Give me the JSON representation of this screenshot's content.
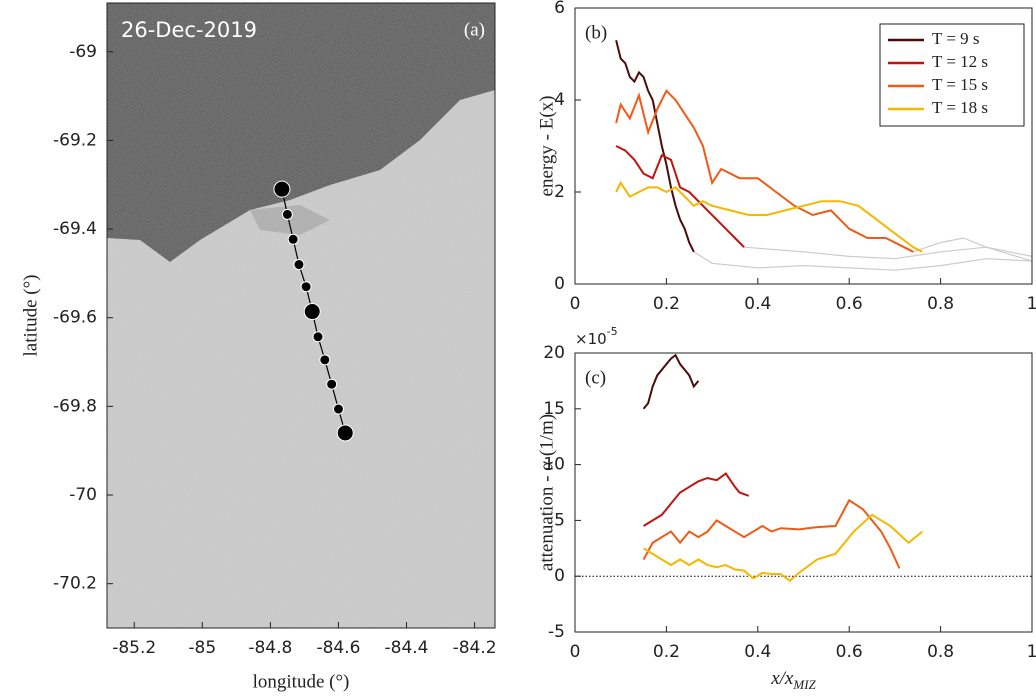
{
  "chart_data": [
    {
      "type": "scatter",
      "title": "26-Dec-2019",
      "panel_label": "(a)",
      "xlabel": "longitude (°)",
      "ylabel": "latitude (°)",
      "xlim": [
        -85.28,
        -84.14
      ],
      "ylim": [
        -70.3,
        -68.89
      ],
      "xticks": [
        -85.2,
        -85,
        -84.8,
        -84.6,
        -84.4,
        -84.2
      ],
      "yticks": [
        -70.2,
        -70,
        -69.8,
        -69.6,
        -69.4,
        -69.2,
        -69
      ],
      "color": "#000000",
      "x": [
        -84.766,
        -84.75,
        -84.733,
        -84.716,
        -84.695,
        -84.677,
        -84.66,
        -84.64,
        -84.62,
        -84.6,
        -84.58
      ],
      "values": [
        -69.31,
        -69.367,
        -69.423,
        -69.48,
        -69.53,
        -69.586,
        -69.643,
        -69.695,
        -69.75,
        -69.806,
        -69.86
      ]
    },
    {
      "type": "line",
      "panel_label": "(b)",
      "ylabel": "energy - E(x)",
      "xlim": [
        0,
        1
      ],
      "ylim": [
        0,
        6
      ],
      "xticks": [
        0,
        0.2,
        0.4,
        0.6,
        0.8,
        1
      ],
      "yticks": [
        0,
        2,
        4,
        6
      ],
      "legend": "upper right",
      "series": [
        {
          "name": null,
          "color": "#cccccc",
          "x": [
            0.26,
            0.3,
            0.4,
            0.5,
            0.6,
            0.7,
            0.8,
            0.9,
            1
          ],
          "values": [
            0.7,
            0.45,
            0.35,
            0.4,
            0.35,
            0.3,
            0.4,
            0.55,
            0.5
          ]
        },
        {
          "name": null,
          "color": "#cccccc",
          "x": [
            0.37,
            0.5,
            0.6,
            0.7,
            0.8,
            0.9,
            1
          ],
          "values": [
            0.8,
            0.7,
            0.6,
            0.55,
            0.7,
            0.8,
            0.5
          ]
        },
        {
          "name": null,
          "color": "#cccccc",
          "x": [
            0.74,
            0.8,
            0.85,
            0.9,
            1
          ],
          "values": [
            0.7,
            0.9,
            1.0,
            0.8,
            0.6
          ]
        },
        {
          "name": "T = 9 s",
          "color": "#4a0c0c",
          "x": [
            0.09,
            0.1,
            0.11,
            0.12,
            0.13,
            0.14,
            0.15,
            0.16,
            0.17,
            0.18,
            0.19,
            0.2,
            0.21,
            0.22,
            0.23,
            0.24,
            0.25,
            0.26
          ],
          "values": [
            5.3,
            4.9,
            4.8,
            4.5,
            4.4,
            4.6,
            4.5,
            4.2,
            4.0,
            3.5,
            3.0,
            2.6,
            2.1,
            1.7,
            1.4,
            1.2,
            0.9,
            0.7
          ]
        },
        {
          "name": "T = 12 s",
          "color": "#c0140f",
          "x": [
            0.09,
            0.11,
            0.13,
            0.15,
            0.17,
            0.19,
            0.21,
            0.23,
            0.25,
            0.27,
            0.29,
            0.31,
            0.33,
            0.35,
            0.37
          ],
          "values": [
            3.0,
            2.9,
            2.7,
            2.4,
            2.3,
            2.8,
            2.7,
            2.1,
            2.0,
            1.8,
            1.6,
            1.4,
            1.2,
            1.0,
            0.8
          ]
        },
        {
          "name": "T = 15 s",
          "color": "#f05a14",
          "x": [
            0.09,
            0.1,
            0.12,
            0.14,
            0.16,
            0.18,
            0.2,
            0.22,
            0.24,
            0.26,
            0.28,
            0.3,
            0.32,
            0.36,
            0.4,
            0.44,
            0.48,
            0.52,
            0.56,
            0.6,
            0.64,
            0.68,
            0.72,
            0.74
          ],
          "values": [
            3.5,
            3.9,
            3.6,
            4.1,
            3.3,
            3.8,
            4.2,
            4.0,
            3.7,
            3.4,
            3.0,
            2.2,
            2.5,
            2.3,
            2.3,
            2.0,
            1.7,
            1.5,
            1.6,
            1.2,
            1.0,
            1.0,
            0.8,
            0.7
          ]
        },
        {
          "name": "T = 18 s",
          "color": "#f5b800",
          "x": [
            0.09,
            0.1,
            0.12,
            0.14,
            0.16,
            0.18,
            0.2,
            0.22,
            0.24,
            0.26,
            0.28,
            0.3,
            0.34,
            0.38,
            0.42,
            0.46,
            0.5,
            0.54,
            0.58,
            0.62,
            0.66,
            0.7,
            0.74,
            0.76
          ],
          "values": [
            2.0,
            2.2,
            1.9,
            2.0,
            2.1,
            2.1,
            2.0,
            2.1,
            1.9,
            1.7,
            1.8,
            1.7,
            1.6,
            1.5,
            1.5,
            1.6,
            1.7,
            1.8,
            1.8,
            1.7,
            1.4,
            1.1,
            0.8,
            0.7
          ]
        }
      ]
    },
    {
      "type": "line",
      "panel_label": "(c)",
      "ylabel": "attenuation - α (1/m)",
      "xlabel": "x/x",
      "xlabel_sub": "MIZ",
      "y_multiplier": "×10",
      "y_multiplier_exponent": "-5",
      "xlim": [
        0,
        1
      ],
      "ylim": [
        -5,
        20
      ],
      "xticks": [
        0,
        0.2,
        0.4,
        0.6,
        0.8,
        1
      ],
      "yticks": [
        -5,
        0,
        5,
        10,
        15,
        20
      ],
      "hline": 0,
      "series": [
        {
          "name": "T = 9 s",
          "color": "#4a0c0c",
          "x": [
            0.15,
            0.16,
            0.17,
            0.18,
            0.19,
            0.2,
            0.21,
            0.22,
            0.23,
            0.24,
            0.25,
            0.26,
            0.27
          ],
          "values": [
            15,
            15.5,
            17,
            18,
            18.5,
            19,
            19.5,
            19.8,
            19,
            18.5,
            18,
            17,
            17.5
          ]
        },
        {
          "name": "T = 12 s",
          "color": "#c0140f",
          "x": [
            0.15,
            0.17,
            0.19,
            0.21,
            0.23,
            0.25,
            0.27,
            0.29,
            0.31,
            0.33,
            0.35,
            0.36,
            0.38
          ],
          "values": [
            4.5,
            5,
            5.5,
            6.5,
            7.5,
            8,
            8.5,
            8.8,
            8.6,
            9.2,
            8,
            7.5,
            7.2
          ]
        },
        {
          "name": "T = 15 s",
          "color": "#f05a14",
          "x": [
            0.15,
            0.17,
            0.19,
            0.21,
            0.23,
            0.25,
            0.27,
            0.29,
            0.31,
            0.33,
            0.35,
            0.37,
            0.39,
            0.41,
            0.43,
            0.45,
            0.49,
            0.53,
            0.57,
            0.6,
            0.63,
            0.65,
            0.67,
            0.69,
            0.71
          ],
          "values": [
            1.5,
            3,
            3.5,
            4,
            3,
            4,
            3.5,
            4,
            5,
            4.5,
            4,
            3.5,
            4,
            4.5,
            4,
            4.3,
            4.2,
            4.4,
            4.5,
            6.8,
            6,
            5,
            4,
            2.5,
            0.7
          ]
        },
        {
          "name": "T = 18 s",
          "color": "#f5b800",
          "x": [
            0.15,
            0.17,
            0.19,
            0.21,
            0.23,
            0.25,
            0.27,
            0.29,
            0.31,
            0.33,
            0.35,
            0.37,
            0.39,
            0.41,
            0.43,
            0.45,
            0.47,
            0.49,
            0.53,
            0.57,
            0.61,
            0.65,
            0.69,
            0.73,
            0.76
          ],
          "values": [
            2.5,
            2,
            1.5,
            1,
            1.5,
            1,
            1.5,
            1,
            0.8,
            1,
            0.6,
            0.5,
            -0.2,
            0.3,
            0.2,
            0.2,
            -0.4,
            0.3,
            1.5,
            2,
            4,
            5.5,
            4.5,
            3,
            4
          ]
        }
      ]
    }
  ]
}
